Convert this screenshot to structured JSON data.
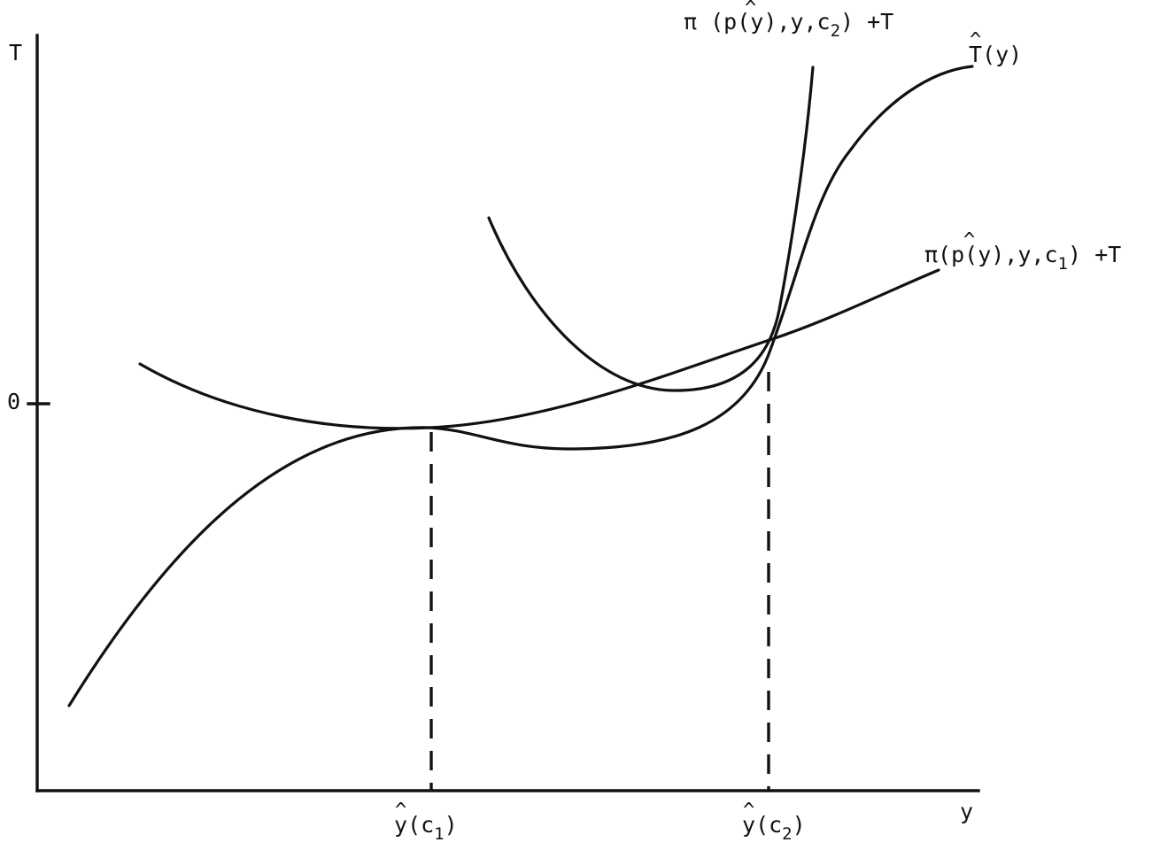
{
  "axes": {
    "y_axis_label": "T",
    "x_axis_label": "y",
    "zero_tick_label": "0"
  },
  "curve_labels": {
    "pi_c2": {
      "prefix": "π (p",
      "hat": "^",
      "middle": "(y),y,c",
      "subscript": "2",
      "suffix": ") +T"
    },
    "t_hat": {
      "base": "T",
      "hat": "^",
      "suffix": "(y)"
    },
    "pi_c1": {
      "prefix": "π(p",
      "hat": "^",
      "middle": "(y),y,c",
      "subscript": "1",
      "suffix": ") +T"
    }
  },
  "x_tick_labels": {
    "y_c1": {
      "base": "y",
      "hat": "^",
      "middle": "(c",
      "subscript": "1",
      "suffix": ")"
    },
    "y_c2": {
      "base": "y",
      "hat": "^",
      "middle": "(c",
      "subscript": "2",
      "suffix": ")"
    }
  }
}
